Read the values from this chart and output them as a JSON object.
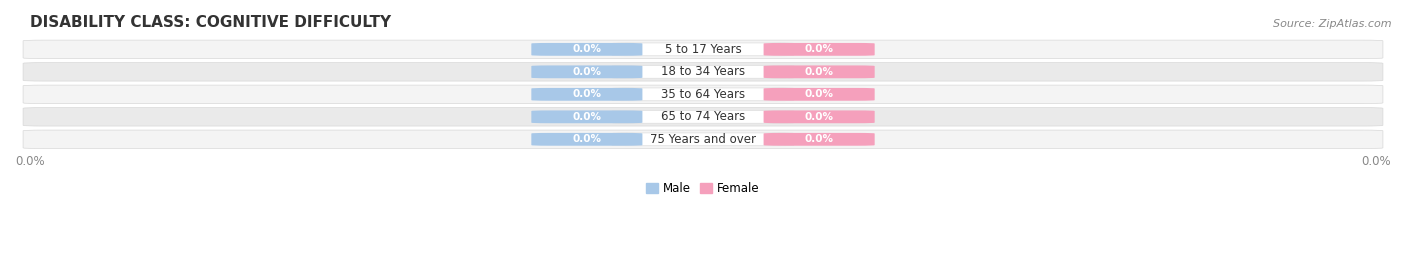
{
  "title": "DISABILITY CLASS: COGNITIVE DIFFICULTY",
  "source": "Source: ZipAtlas.com",
  "categories": [
    "5 to 17 Years",
    "18 to 34 Years",
    "35 to 64 Years",
    "65 to 74 Years",
    "75 Years and over"
  ],
  "male_values": [
    "0.0%",
    "0.0%",
    "0.0%",
    "0.0%",
    "0.0%"
  ],
  "female_values": [
    "0.0%",
    "0.0%",
    "0.0%",
    "0.0%",
    "0.0%"
  ],
  "male_color": "#a8c8e8",
  "female_color": "#f5a0bc",
  "row_bg_light": "#f4f4f4",
  "row_bg_dark": "#eaeaea",
  "text_color": "#333333",
  "background_color": "#ffffff",
  "legend_male": "Male",
  "legend_female": "Female",
  "x_tick_left": "0.0%",
  "x_tick_right": "0.0%",
  "title_fontsize": 11,
  "label_fontsize": 8.5,
  "source_fontsize": 8,
  "bar_label_fontsize": 7.5,
  "cat_label_fontsize": 8.5
}
